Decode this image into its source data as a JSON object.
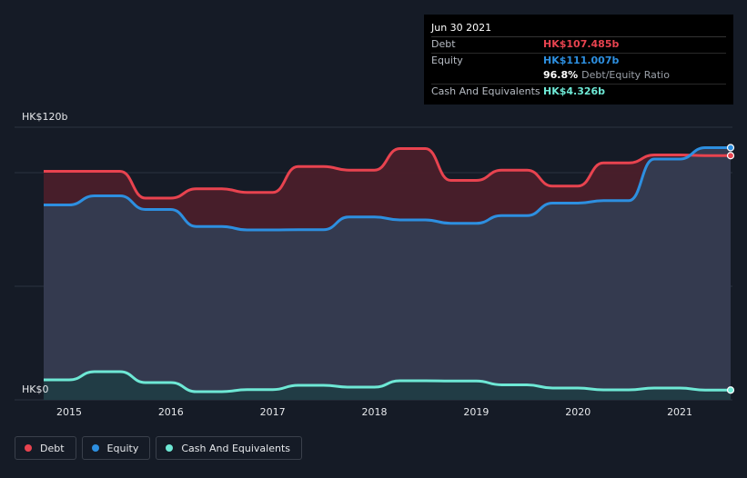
{
  "tooltip": {
    "date": "Jun 30 2021",
    "debt_label": "Debt",
    "debt_value": "HK$107.485b",
    "equity_label": "Equity",
    "equity_value": "HK$111.007b",
    "ratio_value": "96.8%",
    "ratio_label": "Debt/Equity Ratio",
    "cash_label": "Cash And Equivalents",
    "cash_value": "HK$4.326b"
  },
  "colors": {
    "debt": "#e8434f",
    "equity": "#2d8fe0",
    "cash": "#6ee8d5",
    "background": "#151b26"
  },
  "chart_data": {
    "type": "area",
    "y_axis_labels": [
      "HK$120b",
      "HK$0"
    ],
    "ylim": [
      0,
      120
    ],
    "xlim": [
      2014.75,
      2021.5
    ],
    "x_ticks": [
      "2015",
      "2016",
      "2017",
      "2018",
      "2019",
      "2020",
      "2021"
    ],
    "grid": true,
    "legend_position": "bottom-left",
    "series": [
      {
        "name": "Debt",
        "color": "#e8434f",
        "points": [
          [
            2014.75,
            100.6
          ],
          [
            2015.0,
            100.6
          ],
          [
            2015.25,
            100.6
          ],
          [
            2015.5,
            100.6
          ],
          [
            2015.75,
            88.8
          ],
          [
            2016.0,
            88.8
          ],
          [
            2016.25,
            92.9
          ],
          [
            2016.5,
            92.9
          ],
          [
            2016.75,
            91.3
          ],
          [
            2017.0,
            91.3
          ],
          [
            2017.25,
            102.7
          ],
          [
            2017.5,
            102.7
          ],
          [
            2017.75,
            101.1
          ],
          [
            2018.0,
            101.1
          ],
          [
            2018.25,
            110.6
          ],
          [
            2018.5,
            110.6
          ],
          [
            2018.75,
            96.6
          ],
          [
            2019.0,
            96.6
          ],
          [
            2019.25,
            101.1
          ],
          [
            2019.5,
            101.1
          ],
          [
            2019.75,
            94.1
          ],
          [
            2020.0,
            94.1
          ],
          [
            2020.25,
            104.3
          ],
          [
            2020.5,
            104.3
          ],
          [
            2020.75,
            107.8
          ],
          [
            2021.0,
            107.8
          ],
          [
            2021.25,
            107.5
          ],
          [
            2021.5,
            107.5
          ]
        ]
      },
      {
        "name": "Equity",
        "color": "#2d8fe0",
        "points": [
          [
            2014.75,
            85.8
          ],
          [
            2015.0,
            85.8
          ],
          [
            2015.25,
            89.8
          ],
          [
            2015.5,
            89.8
          ],
          [
            2015.75,
            83.8
          ],
          [
            2016.0,
            83.8
          ],
          [
            2016.25,
            76.3
          ],
          [
            2016.5,
            76.3
          ],
          [
            2016.75,
            74.8
          ],
          [
            2017.0,
            74.8
          ],
          [
            2017.25,
            74.9
          ],
          [
            2017.5,
            74.9
          ],
          [
            2017.75,
            80.5
          ],
          [
            2018.0,
            80.5
          ],
          [
            2018.25,
            79.2
          ],
          [
            2018.5,
            79.2
          ],
          [
            2018.75,
            77.7
          ],
          [
            2019.0,
            77.7
          ],
          [
            2019.25,
            81.1
          ],
          [
            2019.5,
            81.1
          ],
          [
            2019.75,
            86.6
          ],
          [
            2020.0,
            86.6
          ],
          [
            2020.25,
            87.7
          ],
          [
            2020.5,
            87.7
          ],
          [
            2020.75,
            106.0
          ],
          [
            2021.0,
            106.0
          ],
          [
            2021.25,
            111.0
          ],
          [
            2021.5,
            111.0
          ]
        ]
      },
      {
        "name": "Cash And Equivalents",
        "color": "#6ee8d5",
        "points": [
          [
            2014.75,
            8.8
          ],
          [
            2015.0,
            8.8
          ],
          [
            2015.25,
            12.4
          ],
          [
            2015.5,
            12.4
          ],
          [
            2015.75,
            7.6
          ],
          [
            2016.0,
            7.6
          ],
          [
            2016.25,
            3.6
          ],
          [
            2016.5,
            3.6
          ],
          [
            2016.75,
            4.5
          ],
          [
            2017.0,
            4.5
          ],
          [
            2017.25,
            6.4
          ],
          [
            2017.5,
            6.4
          ],
          [
            2017.75,
            5.6
          ],
          [
            2018.0,
            5.6
          ],
          [
            2018.25,
            8.4
          ],
          [
            2018.5,
            8.4
          ],
          [
            2018.75,
            8.3
          ],
          [
            2019.0,
            8.3
          ],
          [
            2019.25,
            6.6
          ],
          [
            2019.5,
            6.6
          ],
          [
            2019.75,
            5.2
          ],
          [
            2020.0,
            5.2
          ],
          [
            2020.25,
            4.4
          ],
          [
            2020.5,
            4.4
          ],
          [
            2020.75,
            5.2
          ],
          [
            2021.0,
            5.2
          ],
          [
            2021.25,
            4.3
          ],
          [
            2021.5,
            4.3
          ]
        ]
      }
    ]
  },
  "legend": {
    "debt_label": "Debt",
    "equity_label": "Equity",
    "cash_label": "Cash And Equivalents"
  }
}
